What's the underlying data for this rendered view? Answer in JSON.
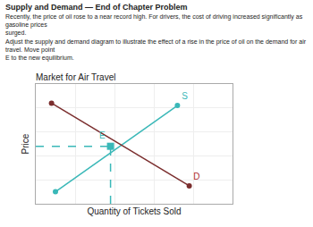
{
  "title": "Supply and Demand — End of Chapter Problem",
  "paragraphs": [
    "Recently, the price of oil rose to a near record high. For drivers, the cost of driving increased significantly as gasoline prices\nsurged.",
    "Adjust the supply and demand diagram to illustrate the effect of a rise in the price of oil on the demand for air travel. Move point\nE to the new equilibrium."
  ],
  "chart_data": {
    "type": "line",
    "title": "Market for Air Travel",
    "xlabel": "Quantity of Tickets Sold",
    "ylabel": "Price",
    "xlim": [
      0,
      1
    ],
    "ylim": [
      0,
      1
    ],
    "xticks": [
      0,
      0.2,
      0.4,
      0.6,
      0.8,
      1
    ],
    "yticks": [
      0,
      0.2,
      0.4,
      0.6,
      0.8,
      1
    ],
    "grid": true,
    "tick_labels": false,
    "series": [
      {
        "name": "S",
        "type": "line",
        "color": "#3ab8b8",
        "label_color": "#3ab8b8",
        "marker": "circle",
        "line_style": "solid",
        "x": [
          0.1,
          0.72
        ],
        "values": [
          0.1,
          0.82
        ]
      },
      {
        "name": "D",
        "type": "line",
        "color": "#7b2e2e",
        "label_color": "#b03030",
        "marker": "circle",
        "line_style": "solid",
        "x": [
          0.08,
          0.78
        ],
        "values": [
          0.84,
          0.15
        ]
      },
      {
        "type": "line",
        "color": "#3ab8b8",
        "line_style": "dashed",
        "x": [
          0.0,
          0.38
        ],
        "values": [
          0.48,
          0.48
        ]
      },
      {
        "type": "line",
        "color": "#3ab8b8",
        "line_style": "dashed",
        "x": [
          0.38,
          0.38
        ],
        "values": [
          0.0,
          0.48
        ]
      },
      {
        "name": "E",
        "type": "scatter",
        "color": "#3ab8b8",
        "label_color": "#3ab8b8",
        "marker": "square",
        "x": [
          0.38
        ],
        "values": [
          0.48
        ]
      }
    ]
  }
}
